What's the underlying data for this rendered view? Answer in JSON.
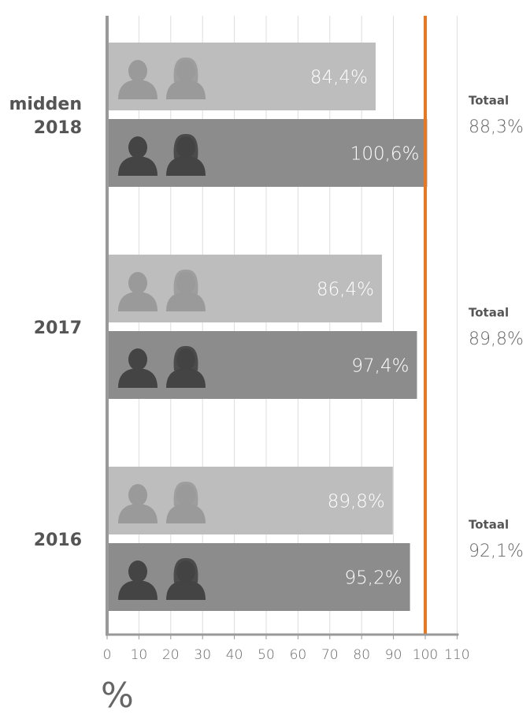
{
  "chart_data": {
    "type": "bar",
    "orientation": "horizontal",
    "categories": [
      "midden 2018",
      "2017",
      "2016"
    ],
    "series": [
      {
        "color": "#bdbdbd",
        "values": [
          84.4,
          86.4,
          89.8
        ],
        "value_labels": [
          "84,4%",
          "86,4%",
          "89,8%"
        ]
      },
      {
        "color": "#8c8c8c",
        "values": [
          100.6,
          97.4,
          95.2
        ],
        "value_labels": [
          "100,6%",
          "97,4%",
          "95,2%"
        ]
      }
    ],
    "totals": {
      "label": "Totaal",
      "values": [
        88.3,
        89.8,
        92.1
      ],
      "value_labels": [
        "88,3%",
        "89,8%",
        "92,1%"
      ]
    },
    "reference_line": {
      "value": 100,
      "color": "#e87722"
    },
    "xlim": [
      0,
      110
    ],
    "xticks": [
      0,
      10,
      20,
      30,
      40,
      50,
      60,
      70,
      80,
      90,
      100,
      110
    ],
    "xlabel": "%",
    "grid": true
  }
}
